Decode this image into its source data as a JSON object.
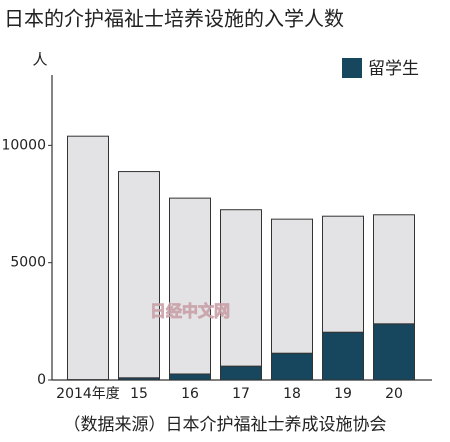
{
  "chart_data": {
    "type": "stacked-bar",
    "title": "日本的介护福祉士培养设施的入学人数",
    "y_unit": "人",
    "categories": [
      "2014年度",
      "15",
      "16",
      "17",
      "18",
      "19",
      "20"
    ],
    "series": [
      {
        "name": "留学生",
        "color": "#17465f",
        "values": [
          17,
          94,
          257,
          591,
          1142,
          2037,
          2395
        ]
      },
      {
        "color": "#e3e3e5",
        "values": [
          10375,
          8790,
          7495,
          6667,
          5714,
          4945,
          4647
        ]
      }
    ],
    "ylim": [
      0,
      13000
    ],
    "yticks": [
      0,
      5000,
      10000
    ],
    "source": "（数据来源）日本介护福祉士养成设施协会",
    "watermark": "日经中文网"
  }
}
